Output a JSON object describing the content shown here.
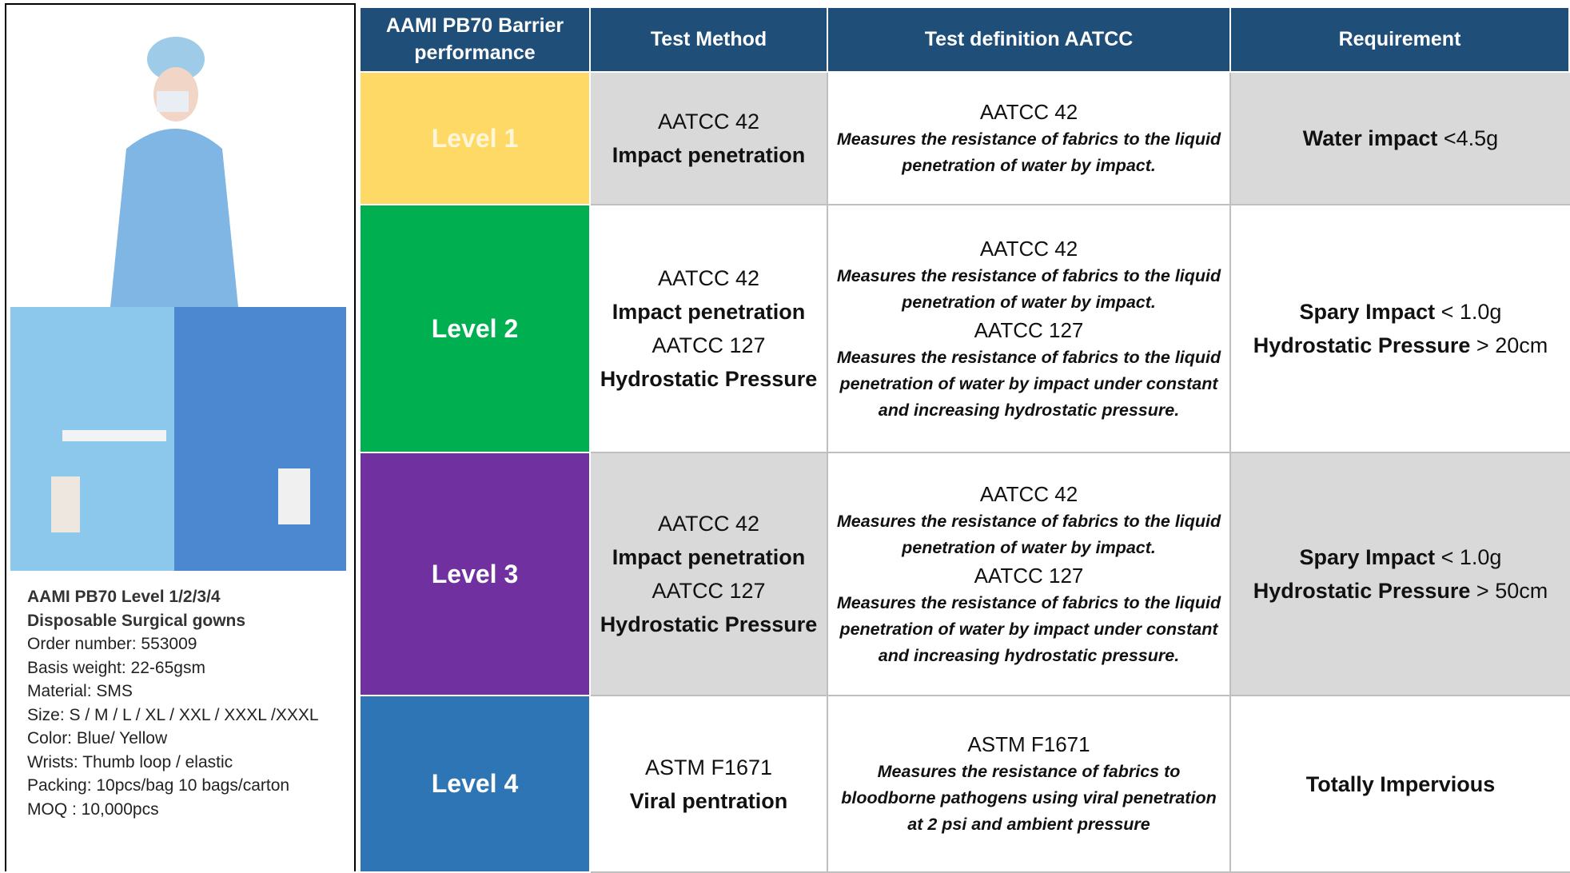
{
  "product": {
    "title": [
      "AAMI PB70 Level 1/2/3/4",
      "Disposable Surgical gowns"
    ],
    "details": [
      "Order number: 553009",
      "Basis weight: 22-65gsm",
      "Material: SMS",
      "Size: S / M / L / XL / XXL / XXXL /XXXL",
      "Color: Blue/ Yellow",
      "Wrists: Thumb loop / elastic",
      "Packing: 10pcs/bag 10 bags/carton",
      "MOQ : 10,000pcs"
    ]
  },
  "table": {
    "header": [
      "AAMI PB70 Barrier performance",
      "Test Method",
      "Test definition AATCC",
      "Requirement"
    ],
    "rows": [
      {
        "level": "Level 1",
        "method": [
          {
            "code": "AATCC 42",
            "name": "Impact penetration"
          }
        ],
        "definition": [
          {
            "code": "AATCC 42",
            "description": "Measures the resistance of fabrics to the liquid penetration of water by impact."
          }
        ],
        "requirement": [
          {
            "label": "Water impact",
            "value": "<4.5g"
          }
        ]
      },
      {
        "level": "Level 2",
        "method": [
          {
            "code": "AATCC 42",
            "name": "Impact penetration"
          },
          {
            "code": "AATCC 127",
            "name": "Hydrostatic Pressure"
          }
        ],
        "definition": [
          {
            "code": "AATCC 42",
            "description": "Measures the resistance of fabrics to the liquid penetration of water by impact."
          },
          {
            "code": "AATCC 127",
            "description": "Measures the resistance of fabrics to the liquid penetration of water by impact under constant and increasing hydrostatic pressure."
          }
        ],
        "requirement": [
          {
            "label": "Spary Impact",
            "value": "< 1.0g"
          },
          {
            "label": "Hydrostatic Pressure",
            "value": "> 20cm"
          }
        ]
      },
      {
        "level": "Level 3",
        "method": [
          {
            "code": "AATCC 42",
            "name": "Impact penetration"
          },
          {
            "code": "AATCC 127",
            "name": "Hydrostatic Pressure"
          }
        ],
        "definition": [
          {
            "code": "AATCC 42",
            "description": "Measures the resistance of fabrics to the liquid penetration of water by impact."
          },
          {
            "code": "AATCC 127",
            "description": "Measures the resistance of fabrics to the liquid penetration of water by impact under constant and increasing hydrostatic pressure."
          }
        ],
        "requirement": [
          {
            "label": "Spary Impact",
            "value": "< 1.0g"
          },
          {
            "label": "Hydrostatic Pressure",
            "value": "> 50cm"
          }
        ]
      },
      {
        "level": "Level 4",
        "method": [
          {
            "code": "ASTM F1671",
            "name": "Viral pentration"
          }
        ],
        "definition": [
          {
            "code": "ASTM F1671",
            "description": "Measures the resistance of fabrics to bloodborne pathogens using viral penetration at 2 psi and ambient pressure"
          }
        ],
        "requirement": [
          {
            "label": "Totally Impervious"
          }
        ]
      }
    ]
  }
}
